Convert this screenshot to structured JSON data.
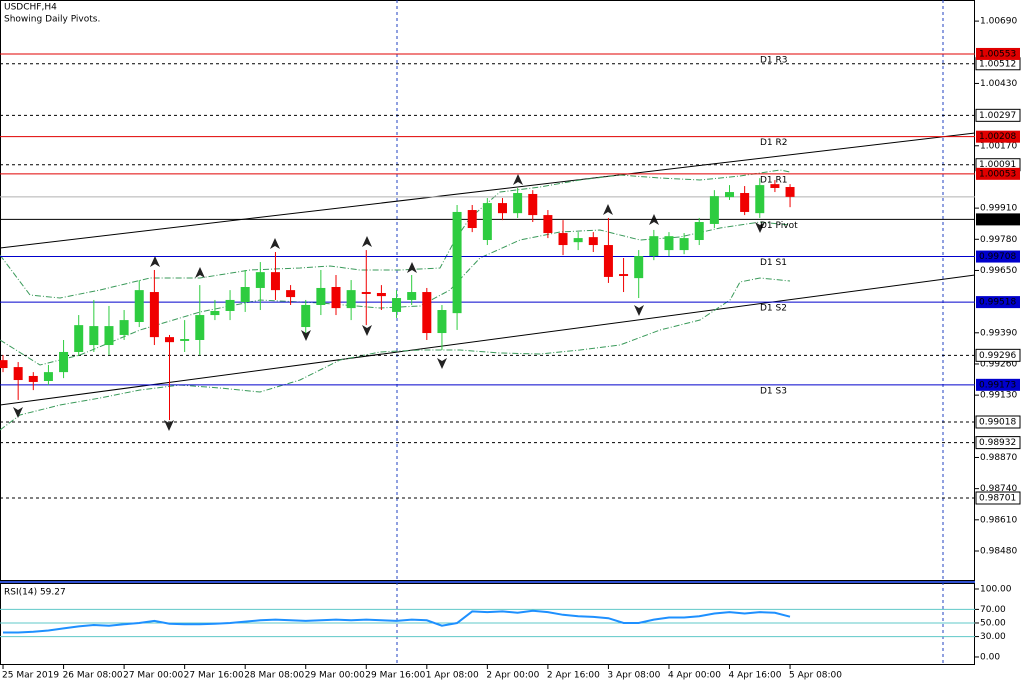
{
  "chart_data": [
    {
      "type": "candlestick",
      "title": "USDCHF,H4",
      "subtitle": "Showing Daily Pivots.",
      "up_color": "#2ecc40",
      "down_color": "#f00000",
      "open": [
        0.99276,
        0.99247,
        0.9921,
        0.99189,
        0.99226,
        0.9931,
        0.99339,
        0.99339,
        0.99381,
        0.99435,
        0.9956,
        0.99372,
        0.99356,
        0.9936,
        0.99464,
        0.99481,
        0.99518,
        0.99577,
        0.99643,
        0.99568,
        0.99414,
        0.99506,
        0.99581,
        0.99493,
        0.9956,
        0.99556,
        0.99477,
        0.99527,
        0.9956,
        0.99389,
        0.99472,
        0.99902,
        0.99777,
        0.99931,
        0.99889,
        0.99969,
        0.99881,
        0.99806,
        0.99768,
        0.99789,
        0.99756,
        0.99635,
        0.99618,
        0.9971,
        0.99735,
        0.99735,
        0.99777,
        0.99844,
        0.99956,
        0.99973,
        0.99889,
        1.0001,
        0.99998
      ],
      "high": [
        0.99297,
        0.99268,
        0.99226,
        0.99256,
        0.9936,
        0.99464,
        0.99527,
        0.99502,
        0.99485,
        0.9961,
        0.99652,
        0.99381,
        0.99443,
        0.99589,
        0.99527,
        0.99568,
        0.99652,
        0.99685,
        0.99727,
        0.99589,
        0.99527,
        0.99652,
        0.99631,
        0.9961,
        0.99735,
        0.99589,
        0.99568,
        0.99631,
        0.99577,
        0.99506,
        0.99923,
        0.99923,
        0.99952,
        0.99952,
        0.99994,
        0.99985,
        0.99902,
        0.9986,
        0.9981,
        0.9981,
        0.99869,
        0.99702,
        0.99735,
        0.99819,
        0.9981,
        0.99806,
        0.99869,
        0.99985,
        1.00006,
        1.00002,
        1.00035,
        1.00027,
        1.0001
      ],
      "low": [
        0.99226,
        0.9911,
        0.99151,
        0.99172,
        0.99201,
        0.99293,
        0.9931,
        0.99297,
        0.9936,
        0.99414,
        0.99339,
        0.99026,
        0.9931,
        0.99297,
        0.99443,
        0.99443,
        0.99477,
        0.99485,
        0.99527,
        0.99506,
        0.99389,
        0.99464,
        0.99464,
        0.99443,
        0.99422,
        0.99485,
        0.99452,
        0.99506,
        0.9936,
        0.99318,
        0.99402,
        0.9981,
        0.99756,
        0.9986,
        0.99869,
        0.99852,
        0.99785,
        0.99714,
        0.99735,
        0.99727,
        0.99598,
        0.9956,
        0.99535,
        0.99693,
        0.9971,
        0.99718,
        0.99756,
        0.99827,
        0.99944,
        0.99881,
        0.99869,
        0.99977,
        0.99914
      ],
      "close": [
        0.99243,
        0.99193,
        0.99185,
        0.99226,
        0.9931,
        0.99422,
        0.99418,
        0.99418,
        0.99443,
        0.99568,
        0.99372,
        0.99351,
        0.99364,
        0.99464,
        0.99481,
        0.99527,
        0.99581,
        0.99643,
        0.99568,
        0.99539,
        0.99506,
        0.99577,
        0.99493,
        0.99568,
        0.99552,
        0.99543,
        0.99535,
        0.9956,
        0.99389,
        0.99485,
        0.99894,
        0.99827,
        0.99931,
        0.99889,
        0.99973,
        0.99881,
        0.99806,
        0.99756,
        0.99785,
        0.99756,
        0.99623,
        0.99627,
        0.9971,
        0.99793,
        0.99793,
        0.99785,
        0.99852,
        0.9996,
        0.99977,
        0.99894,
        1.00006,
        0.99994,
        0.99957
      ],
      "xlim": [
        -0.2,
        64.22
      ],
      "xticks": [
        {
          "value": 0,
          "label": "25 Mar 2019"
        },
        {
          "value": 4,
          "label": "26 Mar 08:00"
        },
        {
          "value": 8,
          "label": "27 Mar 00:00"
        },
        {
          "value": 12,
          "label": "27 Mar 16:00"
        },
        {
          "value": 16,
          "label": "28 Mar 08:00"
        },
        {
          "value": 20,
          "label": "29 Mar 00:00"
        },
        {
          "value": 24,
          "label": "29 Mar 16:00"
        },
        {
          "value": 28,
          "label": "1 Apr 08:00"
        },
        {
          "value": 32,
          "label": "2 Apr 00:00"
        },
        {
          "value": 36,
          "label": "2 Apr 16:00"
        },
        {
          "value": 40,
          "label": "3 Apr 08:00"
        },
        {
          "value": 44,
          "label": "4 Apr 00:00"
        },
        {
          "value": 48,
          "label": "4 Apr 16:00"
        },
        {
          "value": 52,
          "label": "5 Apr 08:00"
        }
      ],
      "ylim": [
        0.98359,
        1.00778
      ],
      "yticks": [
        {
          "value": 1.0069,
          "label": "1.00690"
        },
        {
          "value": 1.0043,
          "label": "1.00430"
        },
        {
          "value": 1.0017,
          "label": "1.00170"
        },
        {
          "value": 0.9991,
          "label": "0.99910"
        },
        {
          "value": 0.9978,
          "label": "0.99780"
        },
        {
          "value": 0.9965,
          "label": "0.99650"
        },
        {
          "value": 0.9939,
          "label": "0.99390"
        },
        {
          "value": 0.9926,
          "label": "0.99260"
        },
        {
          "value": 0.9913,
          "label": "0.99130"
        },
        {
          "value": 0.9887,
          "label": "0.98870"
        },
        {
          "value": 0.9874,
          "label": "0.98740"
        },
        {
          "value": 0.9861,
          "label": "0.98610"
        },
        {
          "value": 0.9848,
          "label": "0.98480"
        }
      ],
      "pivots": [
        {
          "name": "D1 R3",
          "value": 1.00553,
          "color": "#e00000"
        },
        {
          "name": "D1 R2",
          "value": 1.00208,
          "color": "#e00000"
        },
        {
          "name": "D1 R1",
          "value": 1.00053,
          "color": "#e00000"
        },
        {
          "name": "D1 Pivot",
          "value": 0.99863,
          "color": "#000000"
        },
        {
          "name": "D1 S1",
          "value": 0.99708,
          "color": "#0000cc"
        },
        {
          "name": "D1 S2",
          "value": 0.99518,
          "color": "#0000cc"
        },
        {
          "name": "D1 S3",
          "value": 0.99173,
          "color": "#0000cc"
        }
      ],
      "levels": [
        1.00512,
        1.00297,
        1.00091,
        0.99296,
        0.99018,
        0.98932,
        0.98701
      ],
      "current_price": 0.99957
    },
    {
      "type": "line",
      "title": "RSI(14) 59.27",
      "values": [
        36,
        36,
        37,
        39,
        42,
        45,
        47,
        46,
        48,
        50,
        53,
        49,
        48,
        48,
        49,
        50,
        52,
        54,
        55,
        54,
        53,
        54,
        55,
        54,
        55,
        54,
        53,
        55,
        54,
        46,
        50,
        67,
        66,
        67,
        65,
        68,
        66,
        62,
        60,
        59,
        57,
        50,
        50,
        55,
        58,
        58,
        60,
        64,
        66,
        64,
        66,
        65,
        59.27
      ],
      "color": "#1e90ff",
      "levels": [
        70,
        50,
        30
      ],
      "level_color": "#5fc8c8",
      "ylim": [
        -11.8,
        108.8
      ],
      "yticks": [
        {
          "value": 100,
          "label": "100.00"
        },
        {
          "value": 70,
          "label": "70.00"
        },
        {
          "value": 50,
          "label": "50.00"
        },
        {
          "value": 30,
          "label": "30.00"
        },
        {
          "value": 0,
          "label": "0.00"
        }
      ]
    }
  ]
}
